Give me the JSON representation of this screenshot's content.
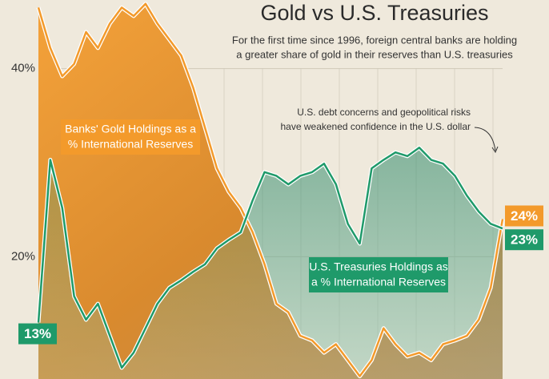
{
  "chart_data": {
    "type": "line",
    "title": "Gold vs U.S. Treasuries",
    "subtitle": [
      "For the first time since 1996, foreign central banks are holding",
      "a greater share of gold in their reserves than U.S. treasuries"
    ],
    "annotation": [
      "U.S. debt concerns and geopolitical risks",
      "have weakened confidence in the U.S. dollar"
    ],
    "ylim": [
      7,
      47.3
    ],
    "yticks": [
      {
        "value": 20,
        "label": "20%"
      },
      {
        "value": 40,
        "label": "40%"
      }
    ],
    "series": [
      {
        "label_lines": [
          "Banks' Gold Holdings as a",
          "% International Reserves"
        ],
        "color": "#f39a2b",
        "values": [
          46.5,
          42.2,
          39.2,
          40.5,
          43.9,
          42.2,
          44.8,
          46.5,
          45.6,
          46.9,
          44.8,
          43.1,
          41.4,
          38,
          33.7,
          29.4,
          26.9,
          25.2,
          22.6,
          19.2,
          15,
          14.1,
          11.6,
          11.1,
          9.8,
          10.7,
          9,
          7.3,
          9,
          12.4,
          10.7,
          9.4,
          9.8,
          9,
          10.7,
          11.1,
          11.6,
          13.3,
          16.7,
          24
        ],
        "value_labels": [
          null,
          null,
          null,
          null,
          null,
          null,
          null,
          null,
          null,
          null,
          null,
          null,
          null,
          null,
          null,
          null,
          null,
          null,
          null,
          null,
          null,
          null,
          null,
          null,
          null,
          null,
          null,
          null,
          null,
          null,
          null,
          null,
          null,
          null,
          null,
          null,
          null,
          null,
          null,
          "24%"
        ]
      },
      {
        "label_lines": [
          "U.S. Treasuries Holdings as",
          "a % International Reserves"
        ],
        "color": "#1f9a6a",
        "values": [
          13,
          30.3,
          25.2,
          15.8,
          13.3,
          15,
          11.6,
          8.2,
          9.8,
          12.4,
          15,
          16.7,
          17.5,
          18.4,
          19.2,
          20.9,
          21.8,
          22.6,
          26,
          29,
          28.6,
          27.7,
          28.6,
          29,
          29.9,
          27.7,
          23.5,
          21.4,
          29.4,
          30.3,
          31.1,
          30.7,
          31.6,
          30.3,
          29.9,
          28.6,
          26.5,
          24.8,
          23.5,
          23
        ],
        "value_labels": [
          "13%",
          null,
          null,
          null,
          null,
          null,
          null,
          null,
          null,
          null,
          null,
          null,
          null,
          null,
          null,
          null,
          null,
          null,
          null,
          null,
          null,
          null,
          null,
          null,
          null,
          null,
          null,
          null,
          null,
          null,
          null,
          null,
          null,
          null,
          null,
          null,
          null,
          null,
          null,
          "23%"
        ]
      }
    ]
  }
}
